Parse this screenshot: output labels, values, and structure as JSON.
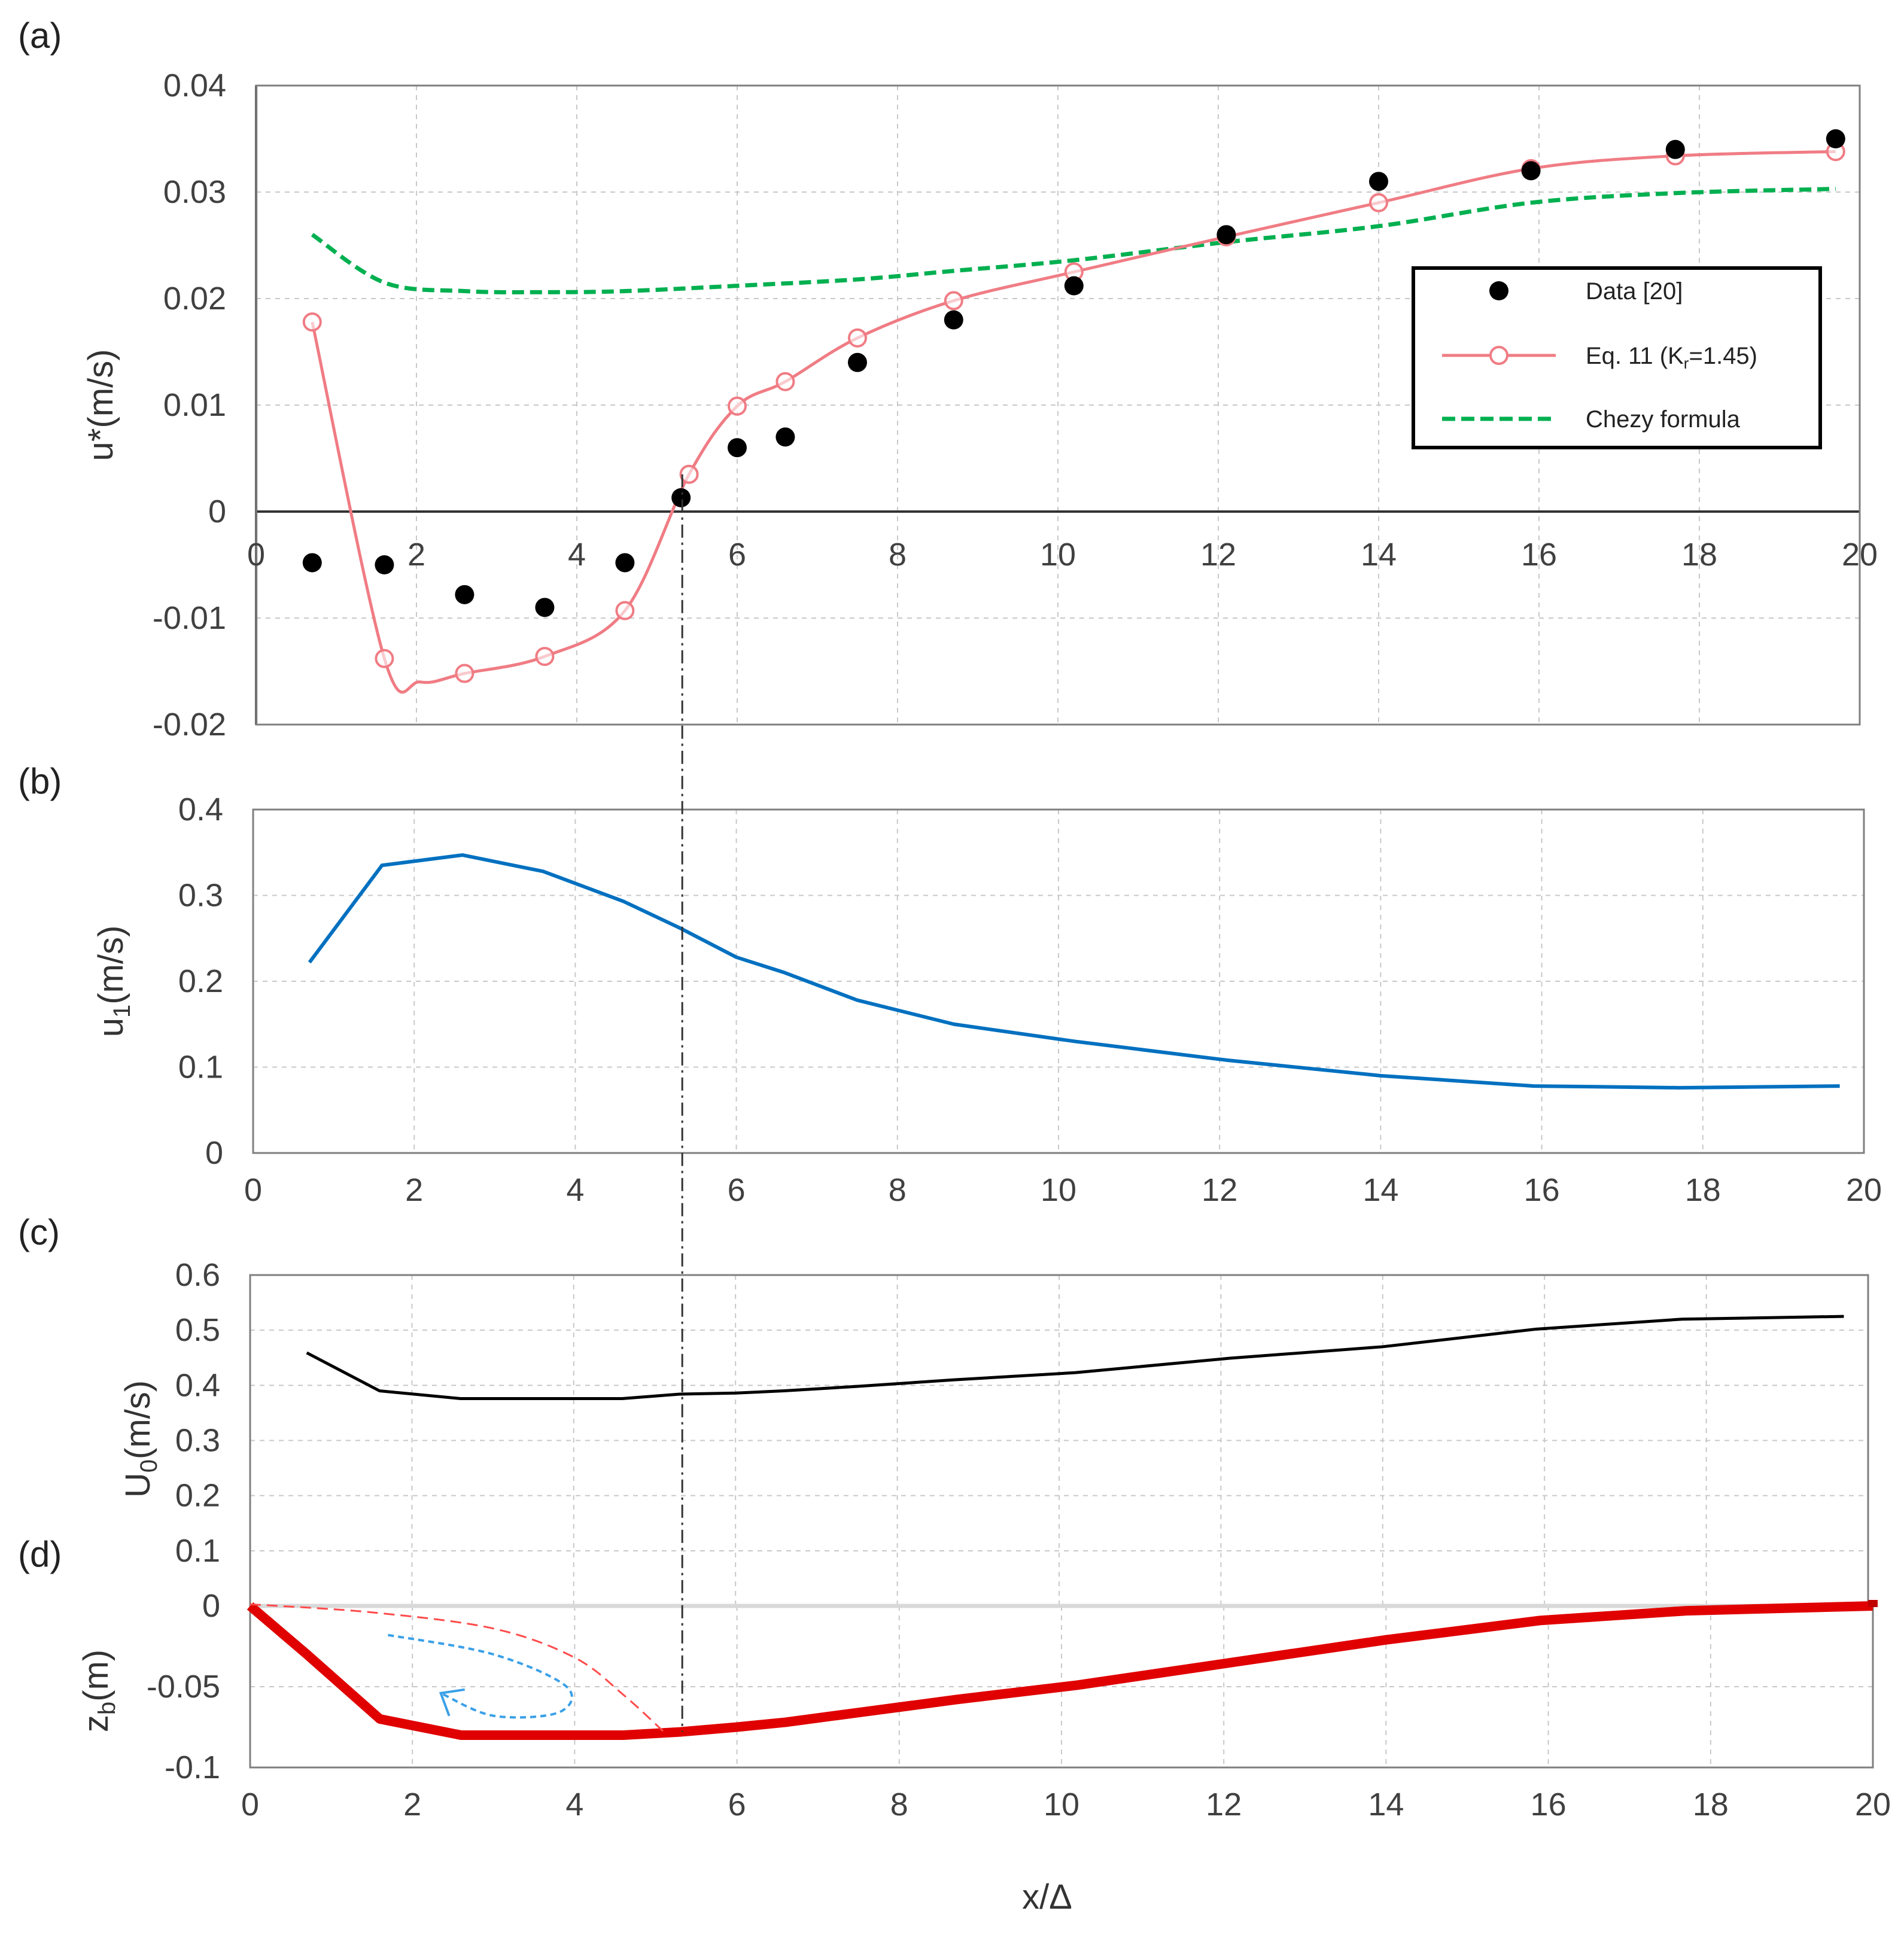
{
  "chart_data": [
    {
      "panel": "(a)",
      "type": "line",
      "ylabel": "u*(m/s)",
      "xlim": [
        0,
        20
      ],
      "ylim": [
        -0.02,
        0.04
      ],
      "xticks": [
        "0",
        "2",
        "4",
        "6",
        "8",
        "10",
        "12",
        "14",
        "16",
        "18",
        "20"
      ],
      "yticks": [
        "-0.02",
        "-0.01",
        "0",
        "0.01",
        "0.02",
        "0.03",
        "0.04"
      ],
      "legend_position": "right",
      "series": [
        {
          "name": "Data [20]",
          "kind": "markers",
          "color": "#000000",
          "x": [
            0.7,
            1.6,
            2.6,
            3.6,
            4.6,
            5.3,
            6.0,
            6.6,
            7.5,
            8.7,
            10.2,
            12.1,
            14.0,
            15.9,
            17.7,
            19.7
          ],
          "y": [
            -0.0048,
            -0.005,
            -0.0078,
            -0.009,
            -0.0048,
            0.0013,
            0.006,
            0.007,
            0.014,
            0.018,
            0.0212,
            0.026,
            0.031,
            0.032,
            0.034,
            0.035
          ]
        },
        {
          "name": "Eq. 11 (K",
          "name_sub": "r",
          "name_tail": "=1.45)",
          "kind": "line-open-markers",
          "color": "#f07c84",
          "x": [
            0.7,
            1.6,
            2.6,
            3.6,
            4.6,
            5.4,
            6.0,
            6.6,
            7.5,
            8.7,
            10.2,
            12.1,
            14.0,
            15.9,
            17.7,
            19.7
          ],
          "y": [
            0.0178,
            -0.0138,
            -0.0152,
            -0.0136,
            -0.0093,
            0.0035,
            0.0099,
            0.0122,
            0.0163,
            0.0198,
            0.0225,
            0.0258,
            0.029,
            0.0322,
            0.0334,
            0.0338
          ]
        },
        {
          "name": "Chezy formula",
          "kind": "dashed-line",
          "color": "#00b050",
          "x": [
            0.7,
            1.6,
            2.6,
            3.6,
            4.6,
            6.0,
            7.5,
            8.7,
            10.2,
            12.1,
            14.0,
            15.9,
            17.7,
            19.7
          ],
          "y": [
            0.026,
            0.0215,
            0.0207,
            0.0206,
            0.0207,
            0.0212,
            0.0218,
            0.0226,
            0.0236,
            0.0253,
            0.0268,
            0.029,
            0.0299,
            0.0303
          ]
        }
      ]
    },
    {
      "panel": "(b)",
      "type": "line",
      "ylabel": "u",
      "ylabel_sub": "1",
      "ylabel_tail": "(m/s)",
      "xlim": [
        0,
        20
      ],
      "ylim": [
        0,
        0.4
      ],
      "xticks": [
        "0",
        "2",
        "4",
        "6",
        "8",
        "10",
        "12",
        "14",
        "16",
        "18",
        "20"
      ],
      "yticks": [
        "0",
        "0.1",
        "0.2",
        "0.3",
        "0.4"
      ],
      "series": [
        {
          "name": "u1",
          "color": "#0070c0",
          "x": [
            0.7,
            1.6,
            2.6,
            3.6,
            4.6,
            5.3,
            6.0,
            6.6,
            7.5,
            8.7,
            10.2,
            12.1,
            14.0,
            15.9,
            17.7,
            19.7
          ],
          "y": [
            0.222,
            0.335,
            0.347,
            0.328,
            0.293,
            0.262,
            0.228,
            0.21,
            0.178,
            0.15,
            0.13,
            0.108,
            0.09,
            0.078,
            0.076,
            0.078
          ]
        }
      ]
    },
    {
      "panel": "(c)",
      "type": "line",
      "ylabel": "U",
      "ylabel_sub": "0",
      "ylabel_tail": "(m/s)",
      "xlim": [
        0,
        20
      ],
      "ylim": [
        0,
        0.6
      ],
      "yticks": [
        "0",
        "0.1",
        "0.2",
        "0.3",
        "0.4",
        "0.5",
        "0.6"
      ],
      "series": [
        {
          "name": "U0",
          "color": "#000000",
          "x": [
            0.7,
            1.6,
            2.6,
            3.6,
            4.6,
            5.3,
            6.0,
            6.6,
            7.5,
            8.7,
            10.2,
            12.1,
            14.0,
            15.9,
            17.7,
            19.7
          ],
          "y": [
            0.459,
            0.39,
            0.376,
            0.376,
            0.376,
            0.384,
            0.386,
            0.39,
            0.398,
            0.41,
            0.423,
            0.449,
            0.47,
            0.502,
            0.52,
            0.525
          ]
        }
      ]
    },
    {
      "panel": "(d)",
      "type": "line",
      "ylabel": "z",
      "ylabel_sub": "b",
      "ylabel_tail": "(m)",
      "xlabel": "x/Δ",
      "xlim": [
        0,
        20
      ],
      "ylim": [
        -0.1,
        0
      ],
      "xticks": [
        "0",
        "2",
        "4",
        "6",
        "8",
        "10",
        "12",
        "14",
        "16",
        "18",
        "20"
      ],
      "yticks": [
        "-0.1",
        "-0.05",
        "0"
      ],
      "series": [
        {
          "name": "bed profile",
          "color": "#e00000",
          "x": [
            0,
            0.7,
            1.6,
            2.6,
            3.6,
            4.6,
            5.3,
            6.0,
            6.6,
            7.5,
            8.7,
            10.2,
            12.1,
            14.0,
            15.9,
            17.7,
            20
          ],
          "y": [
            0,
            -0.03,
            -0.07,
            -0.08,
            -0.08,
            -0.08,
            -0.078,
            -0.075,
            -0.072,
            -0.066,
            -0.058,
            -0.049,
            -0.035,
            -0.021,
            -0.009,
            -0.003,
            0
          ]
        },
        {
          "name": "separation streamline",
          "color": "#ff4b4b",
          "x": [
            0,
            1.5,
            3.0,
            4.0,
            4.6,
            5.1
          ],
          "y": [
            0.001,
            -0.004,
            -0.014,
            -0.032,
            -0.055,
            -0.078
          ]
        },
        {
          "name": "recirculation arrow",
          "color": "#3aa0e8",
          "x": [
            1.7,
            3.0,
            3.9,
            3.8,
            3.0,
            2.35
          ],
          "y": [
            -0.018,
            -0.03,
            -0.05,
            -0.066,
            -0.068,
            -0.054
          ]
        }
      ],
      "reattachment_x": 5.3
    }
  ]
}
